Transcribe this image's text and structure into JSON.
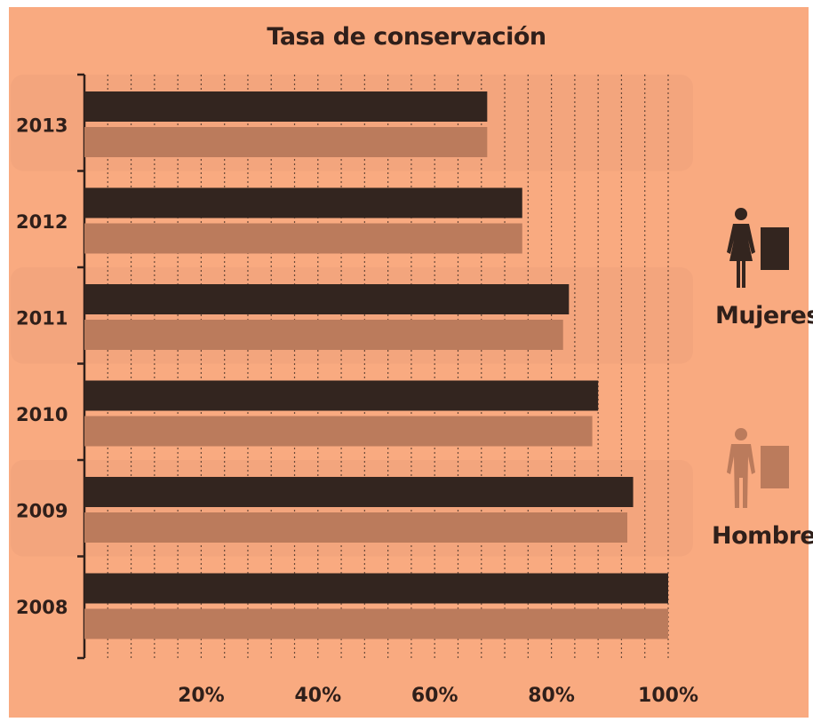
{
  "colors": {
    "background": "#f9aa80",
    "band": "#f3a57d",
    "mujeres": "#33251f",
    "hombres": "#bb7b5c",
    "axis": "#2f1f1a",
    "grid": "#3a2a22"
  },
  "legend": {
    "mujeres": {
      "label": "Mujeres",
      "icon": "woman-icon"
    },
    "hombres": {
      "label": "Hombres",
      "icon": "man-icon"
    }
  },
  "chart_data": {
    "type": "bar",
    "orientation": "horizontal",
    "title": "Tasa  de conservación",
    "categories": [
      "2013",
      "2012",
      "2011",
      "2010",
      "2009",
      "2008"
    ],
    "series": [
      {
        "name": "Mujeres",
        "values": [
          69,
          75,
          83,
          88,
          94,
          100
        ]
      },
      {
        "name": "Hombres",
        "values": [
          69,
          75,
          82,
          87,
          93,
          100
        ]
      }
    ],
    "xlim": [
      0,
      100
    ],
    "x_ticks": [
      "20%",
      "40%",
      "60%",
      "80%",
      "100%"
    ],
    "x_tick_values": [
      20,
      40,
      60,
      80,
      100
    ],
    "grid": true,
    "legend_position": "right"
  }
}
